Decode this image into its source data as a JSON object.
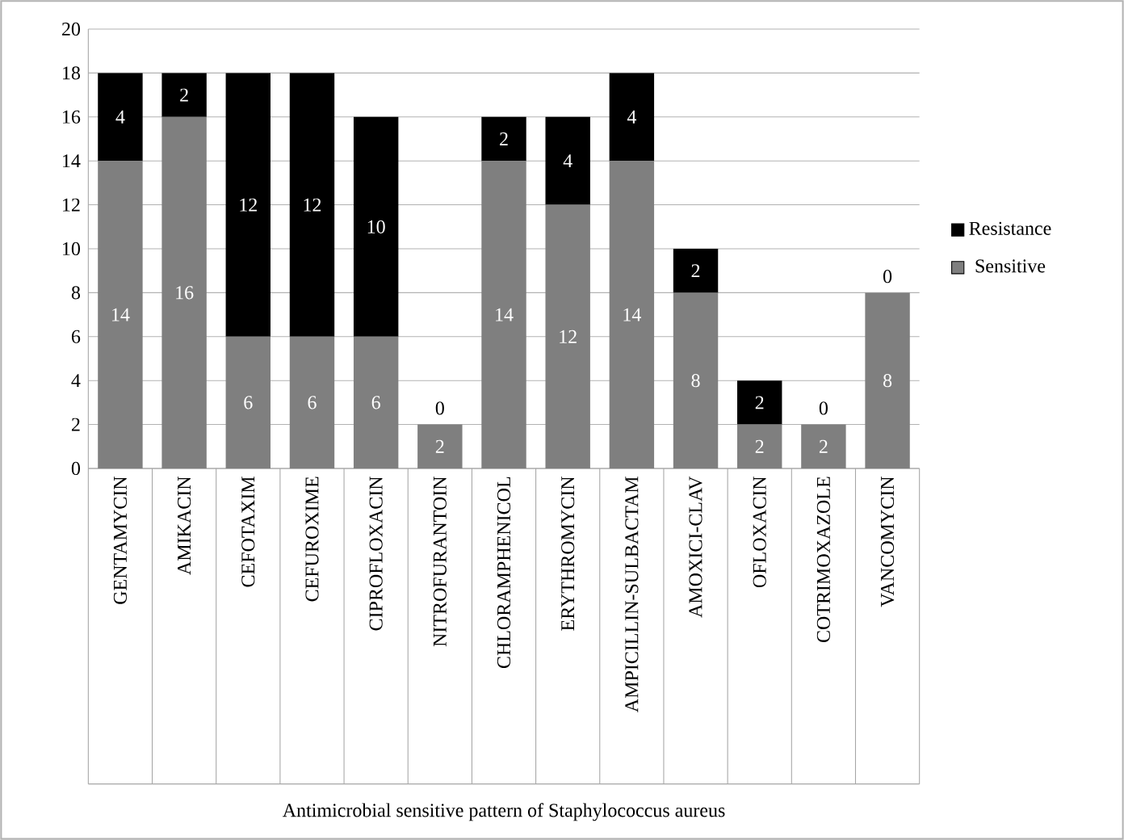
{
  "chart_data": {
    "type": "bar",
    "stacked": true,
    "xlabel": "Antimicrobial sensitive pattern of Staphylococcus aureus",
    "categories": [
      "GENTAMYCIN",
      "AMIKACIN",
      "CEFOTAXIM",
      "CEFUROXIME",
      "CIPROFLOXACIN",
      "NITROFURANTOIN",
      "CHLORAMPHENICOL",
      "ERYTHROMYCIN",
      "AMPICILLIN-SULBACTAM",
      "AMOXICI-CLAV",
      "OFLOXACIN",
      "COTRIMOXAZOLE",
      "VANCOMYCIN"
    ],
    "series": [
      {
        "name": "Sensitive",
        "color": "#7f7f7f",
        "values": [
          14,
          16,
          6,
          6,
          6,
          2,
          14,
          12,
          14,
          8,
          2,
          2,
          8
        ]
      },
      {
        "name": "Resistance",
        "color": "#000000",
        "values": [
          4,
          2,
          12,
          12,
          10,
          0,
          2,
          4,
          4,
          2,
          2,
          0,
          0
        ]
      }
    ],
    "ylim": [
      0,
      20
    ],
    "yticks": [
      0,
      2,
      4,
      6,
      8,
      10,
      12,
      14,
      16,
      18,
      20
    ],
    "grid": "y",
    "legend": "right",
    "data_labels": true
  }
}
